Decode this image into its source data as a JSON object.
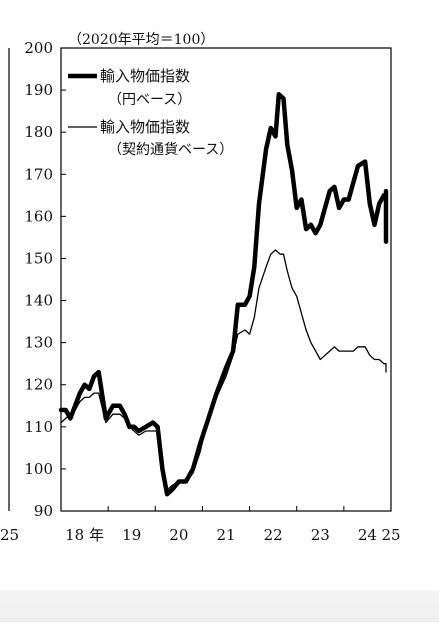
{
  "chart_data": {
    "type": "line",
    "unit_note": "（2020年平均＝100）",
    "ylim": [
      90,
      200
    ],
    "y_ticks": [
      90,
      100,
      110,
      120,
      130,
      140,
      150,
      160,
      170,
      180,
      190,
      200
    ],
    "xlim": [
      2018.0,
      2025.0
    ],
    "x_tick_labels": [
      {
        "label": "18 年",
        "x": 2018.5
      },
      {
        "label": "19",
        "x": 2019.5
      },
      {
        "label": "20",
        "x": 2020.5
      },
      {
        "label": "21",
        "x": 2021.5
      },
      {
        "label": "22",
        "x": 2022.5
      },
      {
        "label": "23",
        "x": 2023.5
      },
      {
        "label": "24",
        "x": 2024.5
      },
      {
        "label": "25",
        "x": 2025.0
      }
    ],
    "left_panel_tick_label": "25",
    "legend_placement": "top-left",
    "grid": false,
    "series": [
      {
        "name": "輸入物価指数",
        "name_sub": "（円ベース）",
        "style": "thick",
        "color": "#000000",
        "points": [
          [
            2018.0,
            114
          ],
          [
            2018.1,
            114
          ],
          [
            2018.2,
            112
          ],
          [
            2018.3,
            115
          ],
          [
            2018.4,
            118
          ],
          [
            2018.5,
            120
          ],
          [
            2018.6,
            119
          ],
          [
            2018.7,
            122
          ],
          [
            2018.8,
            123
          ],
          [
            2018.95,
            112
          ],
          [
            2019.1,
            115
          ],
          [
            2019.25,
            115
          ],
          [
            2019.35,
            113
          ],
          [
            2019.45,
            110
          ],
          [
            2019.55,
            110
          ],
          [
            2019.65,
            109
          ],
          [
            2019.8,
            110
          ],
          [
            2019.95,
            111
          ],
          [
            2020.05,
            110
          ],
          [
            2020.15,
            100
          ],
          [
            2020.25,
            94
          ],
          [
            2020.35,
            95
          ],
          [
            2020.5,
            97
          ],
          [
            2020.65,
            97
          ],
          [
            2020.8,
            100
          ],
          [
            2020.95,
            106
          ],
          [
            2021.1,
            111
          ],
          [
            2021.3,
            118
          ],
          [
            2021.5,
            124
          ],
          [
            2021.65,
            128
          ],
          [
            2021.75,
            139
          ],
          [
            2021.9,
            139
          ],
          [
            2022.0,
            141
          ],
          [
            2022.1,
            148
          ],
          [
            2022.2,
            163
          ],
          [
            2022.35,
            176
          ],
          [
            2022.45,
            181
          ],
          [
            2022.55,
            179
          ],
          [
            2022.62,
            189
          ],
          [
            2022.72,
            188
          ],
          [
            2022.8,
            177
          ],
          [
            2022.9,
            171
          ],
          [
            2023.0,
            162
          ],
          [
            2023.1,
            164
          ],
          [
            2023.2,
            157
          ],
          [
            2023.3,
            158
          ],
          [
            2023.4,
            156
          ],
          [
            2023.5,
            158
          ],
          [
            2023.6,
            162
          ],
          [
            2023.7,
            166
          ],
          [
            2023.8,
            167
          ],
          [
            2023.9,
            162
          ],
          [
            2024.0,
            164
          ],
          [
            2024.1,
            164
          ],
          [
            2024.2,
            168
          ],
          [
            2024.3,
            172
          ],
          [
            2024.45,
            173
          ],
          [
            2024.55,
            163
          ],
          [
            2024.65,
            158
          ],
          [
            2024.75,
            163
          ],
          [
            2024.85,
            165
          ],
          [
            2024.95,
            164
          ],
          [
            2025.05,
            166
          ],
          [
            2025.15,
            161
          ],
          [
            2025.25,
            159
          ],
          [
            2025.35,
            155
          ],
          [
            2025.45,
            154
          ]
        ]
      },
      {
        "name": "輸入物価指数",
        "name_sub": "（契約通貨ベース）",
        "style": "thin",
        "color": "#000000",
        "points": [
          [
            2018.0,
            111
          ],
          [
            2018.1,
            112
          ],
          [
            2018.2,
            113
          ],
          [
            2018.3,
            114
          ],
          [
            2018.4,
            116
          ],
          [
            2018.5,
            117
          ],
          [
            2018.6,
            117
          ],
          [
            2018.7,
            118
          ],
          [
            2018.8,
            118
          ],
          [
            2018.95,
            111
          ],
          [
            2019.1,
            113
          ],
          [
            2019.25,
            113
          ],
          [
            2019.35,
            112
          ],
          [
            2019.45,
            110
          ],
          [
            2019.55,
            109
          ],
          [
            2019.65,
            108
          ],
          [
            2019.8,
            109
          ],
          [
            2019.95,
            109
          ],
          [
            2020.05,
            109
          ],
          [
            2020.15,
            101
          ],
          [
            2020.25,
            95
          ],
          [
            2020.35,
            96
          ],
          [
            2020.5,
            97
          ],
          [
            2020.65,
            97
          ],
          [
            2020.8,
            99
          ],
          [
            2020.95,
            104
          ],
          [
            2021.1,
            111
          ],
          [
            2021.3,
            117
          ],
          [
            2021.5,
            122
          ],
          [
            2021.65,
            127
          ],
          [
            2021.75,
            132
          ],
          [
            2021.9,
            133
          ],
          [
            2022.0,
            132
          ],
          [
            2022.1,
            136
          ],
          [
            2022.2,
            143
          ],
          [
            2022.35,
            148
          ],
          [
            2022.45,
            151
          ],
          [
            2022.55,
            152
          ],
          [
            2022.65,
            151
          ],
          [
            2022.72,
            151
          ],
          [
            2022.8,
            147
          ],
          [
            2022.9,
            143
          ],
          [
            2023.0,
            141
          ],
          [
            2023.1,
            137
          ],
          [
            2023.2,
            133
          ],
          [
            2023.3,
            130
          ],
          [
            2023.4,
            128
          ],
          [
            2023.5,
            126
          ],
          [
            2023.6,
            127
          ],
          [
            2023.7,
            128
          ],
          [
            2023.8,
            129
          ],
          [
            2023.9,
            128
          ],
          [
            2024.0,
            128
          ],
          [
            2024.1,
            128
          ],
          [
            2024.2,
            128
          ],
          [
            2024.3,
            129
          ],
          [
            2024.45,
            129
          ],
          [
            2024.55,
            127
          ],
          [
            2024.65,
            126
          ],
          [
            2024.75,
            126
          ],
          [
            2024.85,
            125
          ],
          [
            2024.95,
            125
          ],
          [
            2025.05,
            125
          ],
          [
            2025.15,
            125
          ],
          [
            2025.25,
            124
          ],
          [
            2025.35,
            123
          ]
        ]
      }
    ]
  }
}
